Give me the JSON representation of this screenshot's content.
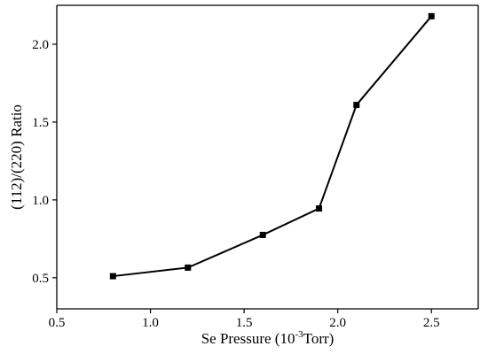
{
  "chart_data": {
    "type": "line",
    "title": "",
    "xlabel": {
      "main": "Se Pressure (10",
      "sup": "-3",
      "tail": "Torr)"
    },
    "ylabel": "(112)/(220) Ratio",
    "xlim": [
      0.5,
      2.75
    ],
    "ylim": [
      0.3,
      2.25
    ],
    "xticks": [
      0.5,
      1.0,
      1.5,
      2.0,
      2.5
    ],
    "xtick_labels": [
      "0.5",
      "1.0",
      "1.5",
      "2.0",
      "2.5"
    ],
    "yticks": [
      0.5,
      1.0,
      1.5,
      2.0
    ],
    "ytick_labels": [
      "0.5",
      "1.0",
      "1.5",
      "2.0"
    ],
    "grid": false,
    "series": [
      {
        "marker": "square",
        "color": "#000000",
        "x": [
          0.8,
          1.2,
          1.6,
          1.9,
          2.1,
          2.5
        ],
        "y": [
          0.51,
          0.565,
          0.775,
          0.945,
          1.61,
          2.18
        ]
      }
    ]
  }
}
